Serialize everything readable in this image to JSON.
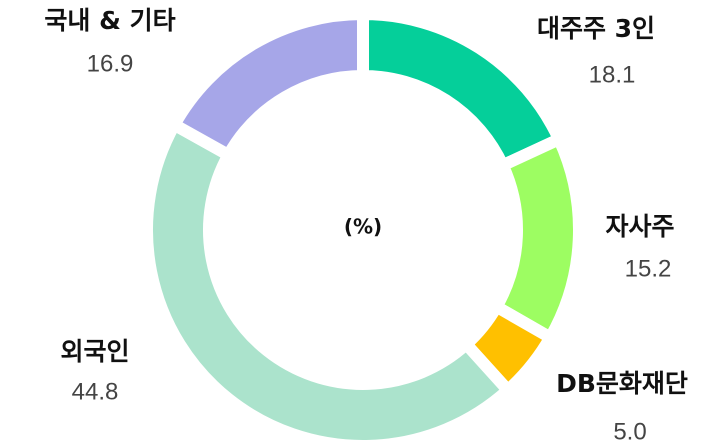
{
  "chart_data": {
    "type": "donut",
    "center_label": "(%)",
    "categories": [
      "대주주 3인",
      "자사주",
      "DB문화재단",
      "외국인",
      "국내 & 기타"
    ],
    "values": [
      18.1,
      15.2,
      5.0,
      44.8,
      16.9
    ],
    "value_labels": [
      "18.1",
      "15.2",
      "5.0",
      "44.8",
      "16.9"
    ],
    "colors": [
      "#05cf9a",
      "#9dfd62",
      "#ffc000",
      "#abe3cc",
      "#a6a6e8"
    ]
  }
}
